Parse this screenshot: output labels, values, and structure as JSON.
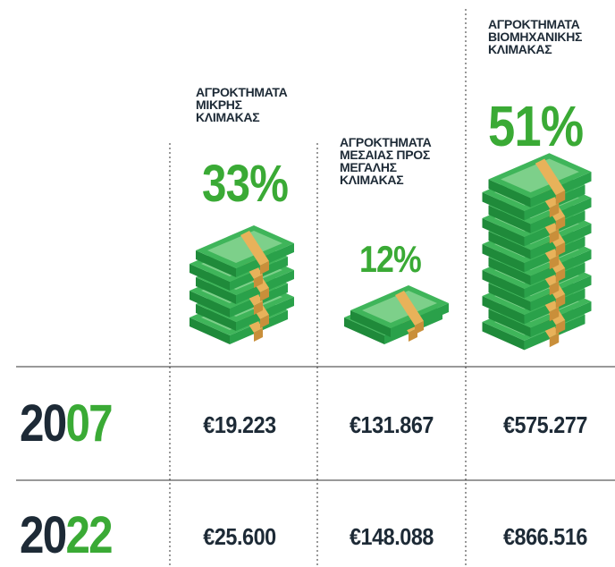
{
  "columns": [
    {
      "header": [
        "ΑΓΡΟΚΤΗΜΑΤΑ",
        "ΜΙΚΡΗΣ",
        "ΚΛΙΜΑΚΑΣ"
      ],
      "share": "33%"
    },
    {
      "header": [
        "ΑΓΡΟΚΤΗΜΑΤΑ",
        "ΜΕΣΑΙΑΣ ΠΡΟΣ",
        "ΜΕΓΑΛΗΣ",
        "ΚΛΙΜΑΚΑΣ"
      ],
      "share": "12%"
    },
    {
      "header": [
        "ΑΓΡΟΚΤΗΜΑΤΑ",
        "ΒΙΟΜΗΧΑΝΙΚΗΣ",
        "ΚΛΙΜΑΚΑΣ"
      ],
      "share": "51%"
    }
  ],
  "rows": [
    {
      "year": "2007",
      "values": [
        "€19.223",
        "€131.867",
        "€575.277"
      ]
    },
    {
      "year": "2022",
      "values": [
        "€25.600",
        "€148.088",
        "€866.516"
      ]
    }
  ]
}
